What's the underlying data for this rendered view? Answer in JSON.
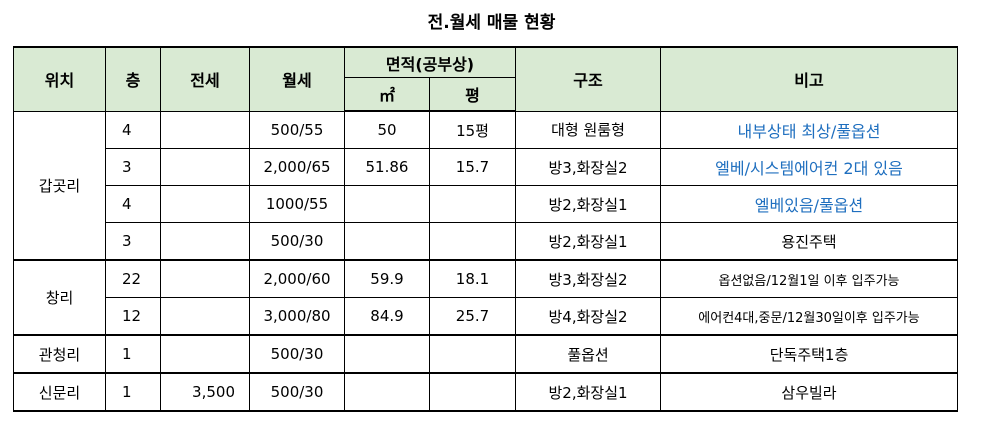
{
  "title": "전.월세 매물 현황",
  "headers": {
    "location": "위치",
    "floor": "층",
    "jeonse": "전세",
    "wolse": "월세",
    "area": "면적(공부상)",
    "area_m2": "㎡",
    "area_pyeong": "평",
    "structure": "구조",
    "remarks": "비고"
  },
  "groups": [
    {
      "location": "갑곳리",
      "rows": [
        {
          "floor": "4",
          "jeonse": "",
          "wolse": "500/55",
          "m2": "50",
          "pyeong": "15평",
          "structure": "대형 원룸형",
          "remarks": "내부상태 최상/풀옵션",
          "remarks_style": "blue"
        },
        {
          "floor": "3",
          "jeonse": "",
          "wolse": "2,000/65",
          "m2": "51.86",
          "pyeong": "15.7",
          "structure": "방3,화장실2",
          "remarks": "엘베/시스템에어컨 2대 있음",
          "remarks_style": "blue"
        },
        {
          "floor": "4",
          "jeonse": "",
          "wolse": "1000/55",
          "m2": "",
          "pyeong": "",
          "structure": "방2,화장실1",
          "remarks": "엘베있음/풀옵션",
          "remarks_style": "blue"
        },
        {
          "floor": "3",
          "jeonse": "",
          "wolse": "500/30",
          "m2": "",
          "pyeong": "",
          "structure": "방2,화장실1",
          "remarks": "용진주택",
          "remarks_style": "normal"
        }
      ]
    },
    {
      "location": "창리",
      "rows": [
        {
          "floor": "22",
          "jeonse": "",
          "wolse": "2,000/60",
          "m2": "59.9",
          "pyeong": "18.1",
          "structure": "방3,화장실2",
          "remarks": "옵션없음/12월1일 이후 입주가능",
          "remarks_style": "small"
        },
        {
          "floor": "12",
          "jeonse": "",
          "wolse": "3,000/80",
          "m2": "84.9",
          "pyeong": "25.7",
          "structure": "방4,화장실2",
          "remarks": "에어컨4대,중문/12월30일이후 입주가능",
          "remarks_style": "small"
        }
      ]
    },
    {
      "location": "관청리",
      "rows": [
        {
          "floor": "1",
          "jeonse": "",
          "wolse": "500/30",
          "m2": "",
          "pyeong": "",
          "structure": "풀옵션",
          "remarks": "단독주택1층",
          "remarks_style": "normal"
        }
      ]
    },
    {
      "location": "신문리",
      "rows": [
        {
          "floor": "1",
          "jeonse": "3,500",
          "wolse": "500/30",
          "m2": "",
          "pyeong": "",
          "structure": "방2,화장실1",
          "remarks": "삼우빌라",
          "remarks_style": "normal"
        }
      ]
    }
  ]
}
